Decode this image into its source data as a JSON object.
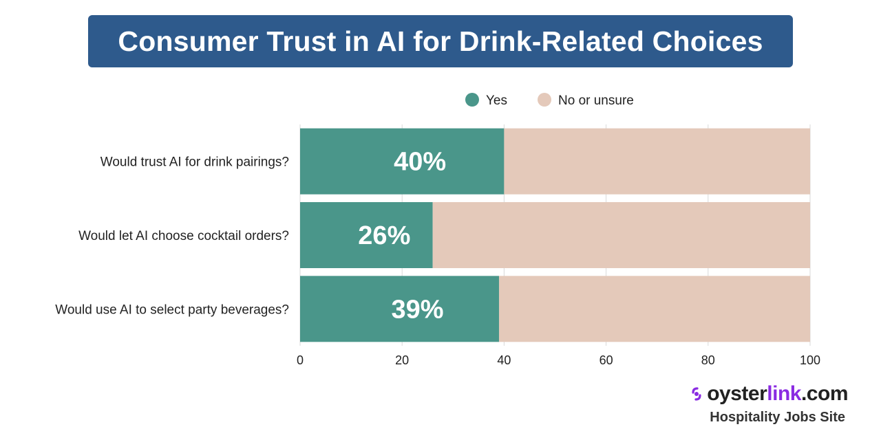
{
  "title": "Consumer Trust in AI for Drink-Related Choices",
  "chart_data": {
    "type": "bar",
    "orientation": "horizontal",
    "stacked": true,
    "categories": [
      "Would trust AI for drink pairings?",
      "Would let AI choose cocktail orders?",
      "Would use AI to select party beverages?"
    ],
    "series": [
      {
        "name": "Yes",
        "values": [
          40,
          26,
          39
        ],
        "color": "#4a968a"
      },
      {
        "name": "No or unsure",
        "values": [
          60,
          74,
          61
        ],
        "color": "#e4c9ba"
      }
    ],
    "data_labels": [
      "40%",
      "26%",
      "39%"
    ],
    "xlim": [
      0,
      100
    ],
    "xticks": [
      0,
      20,
      40,
      60,
      80,
      100
    ],
    "grid": true,
    "legend_position": "top"
  },
  "brand": {
    "part1": "oyster",
    "part2": "link",
    "part3": ".com",
    "tagline": "Hospitality Jobs Site",
    "accent_color": "#8a2be2"
  }
}
